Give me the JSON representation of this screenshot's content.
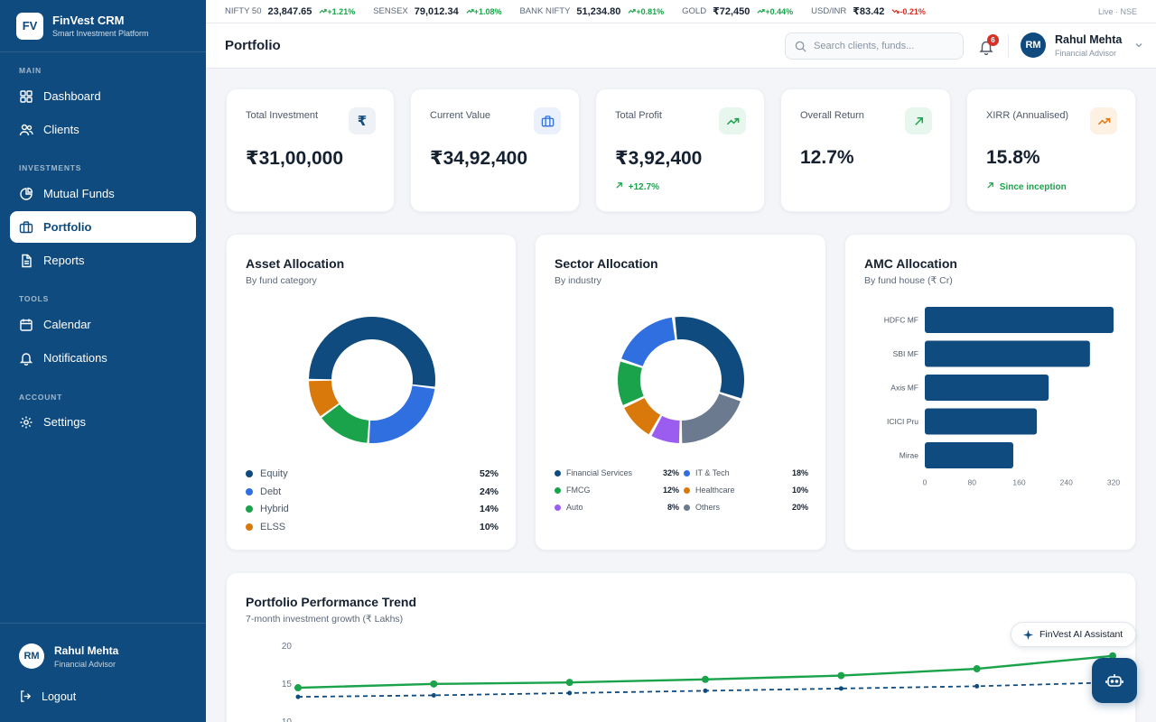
{
  "brand": {
    "logo": "FV",
    "name": "FinVest CRM",
    "tagline": "Smart Investment Platform"
  },
  "sidebar": {
    "sections": [
      {
        "label": "MAIN"
      },
      {
        "label": "INVESTMENTS"
      },
      {
        "label": "TOOLS"
      },
      {
        "label": "ACCOUNT"
      }
    ],
    "items": [
      {
        "label": "Dashboard",
        "icon": "dashboard-icon"
      },
      {
        "label": "Clients",
        "icon": "users-icon"
      },
      {
        "label": "Mutual Funds",
        "icon": "pie-icon"
      },
      {
        "label": "Portfolio",
        "icon": "briefcase-icon",
        "active": true
      },
      {
        "label": "Reports",
        "icon": "document-icon"
      },
      {
        "label": "Calendar",
        "icon": "calendar-icon"
      },
      {
        "label": "Notifications",
        "icon": "bell-icon"
      },
      {
        "label": "Settings",
        "icon": "gear-icon"
      }
    ],
    "user": {
      "initials": "RM",
      "name": "Rahul Mehta",
      "role": "Financial Advisor"
    },
    "logout": "Logout"
  },
  "ticker": {
    "items": [
      {
        "name": "NIFTY 50",
        "value": "23,847.65",
        "change": "+1.21%",
        "dir": "up"
      },
      {
        "name": "SENSEX",
        "value": "79,012.34",
        "change": "+1.08%",
        "dir": "up"
      },
      {
        "name": "BANK NIFTY",
        "value": "51,234.80",
        "change": "+0.81%",
        "dir": "up"
      },
      {
        "name": "GOLD",
        "value": "₹72,450",
        "change": "+0.44%",
        "dir": "up"
      },
      {
        "name": "USD/INR",
        "value": "₹83.42",
        "change": "-0.21%",
        "dir": "down"
      }
    ],
    "live": "Live · NSE"
  },
  "header": {
    "title": "Portfolio",
    "search_placeholder": "Search clients, funds...",
    "notifications": "6",
    "user": {
      "initials": "RM",
      "name": "Rahul Mehta",
      "role": "Financial Advisor"
    }
  },
  "stats": [
    {
      "label": "Total Investment",
      "value": "₹31,00,000",
      "sub": "",
      "icon": "rupee-icon",
      "icon_bg": "#eef1f5",
      "icon_color": "#0f4b7e"
    },
    {
      "label": "Current Value",
      "value": "₹34,92,400",
      "sub": "",
      "icon": "briefcase-icon",
      "icon_bg": "#eaf1fd",
      "icon_color": "#2f6fe0"
    },
    {
      "label": "Total Profit",
      "value": "₹3,92,400",
      "sub": "+12.7%",
      "icon": "trending-up-icon",
      "icon_bg": "#e8f7ee",
      "icon_color": "#1aa34a"
    },
    {
      "label": "Overall Return",
      "value": "12.7%",
      "sub": "",
      "icon": "arrow-up-right-icon",
      "icon_bg": "#e8f7ee",
      "icon_color": "#1aa34a"
    },
    {
      "label": "XIRR (Annualised)",
      "value": "15.8%",
      "sub": "Since inception",
      "icon": "trending-up-icon",
      "icon_bg": "#fdf1e4",
      "icon_color": "#e07b15"
    }
  ],
  "asset_allocation": {
    "title": "Asset Allocation",
    "subtitle": "By fund category",
    "items": [
      {
        "name": "Equity",
        "pct": "52%",
        "value": 52,
        "color": "#0f4b7e"
      },
      {
        "name": "Debt",
        "pct": "24%",
        "value": 24,
        "color": "#2f6fe0"
      },
      {
        "name": "Hybrid",
        "pct": "14%",
        "value": 14,
        "color": "#1aa34a"
      },
      {
        "name": "ELSS",
        "pct": "10%",
        "value": 10,
        "color": "#d9780b"
      }
    ]
  },
  "sector_allocation": {
    "title": "Sector Allocation",
    "subtitle": "By industry",
    "items": [
      {
        "name": "Financial Services",
        "pct": "32%",
        "value": 32,
        "color": "#0f4b7e"
      },
      {
        "name": "IT & Tech",
        "pct": "18%",
        "value": 18,
        "color": "#2f6fe0"
      },
      {
        "name": "FMCG",
        "pct": "12%",
        "value": 12,
        "color": "#1aa34a"
      },
      {
        "name": "Healthcare",
        "pct": "10%",
        "value": 10,
        "color": "#d9780b"
      },
      {
        "name": "Auto",
        "pct": "8%",
        "value": 8,
        "color": "#9b5cf0"
      },
      {
        "name": "Others",
        "pct": "20%",
        "value": 20,
        "color": "#6b7a8f"
      }
    ],
    "chart_order": [
      "Financial Services",
      "Others",
      "Auto",
      "Healthcare",
      "FMCG",
      "IT & Tech"
    ]
  },
  "amc_allocation": {
    "title": "AMC Allocation",
    "subtitle": "By fund house (₹ Cr)",
    "chart_data": {
      "type": "bar",
      "orientation": "horizontal",
      "categories": [
        "HDFC MF",
        "SBI MF",
        "Axis MF",
        "ICICI Pru",
        "Mirae"
      ],
      "values": [
        320,
        280,
        210,
        190,
        150
      ],
      "xticks": [
        "0",
        "80",
        "160",
        "240",
        "320"
      ],
      "xlim": [
        0,
        320
      ],
      "color": "#0f4b7e"
    }
  },
  "performance": {
    "title": "Portfolio Performance Trend",
    "subtitle": "7-month investment growth (₹ Lakhs)",
    "chart_data": {
      "type": "line",
      "yticks": [
        "20",
        "15",
        "10"
      ],
      "ylim": [
        10,
        20
      ],
      "series": [
        {
          "values": [
            14.4,
            14.9,
            15.1,
            15.5,
            16.0,
            16.9,
            18.6
          ],
          "color": "#1aa34a",
          "style": "solid"
        },
        {
          "values": [
            13.2,
            13.4,
            13.7,
            14.0,
            14.3,
            14.6,
            15.1
          ],
          "color": "#0f4b7e",
          "style": "dashed"
        }
      ]
    }
  },
  "assistant": {
    "label": "FinVest AI Assistant"
  }
}
